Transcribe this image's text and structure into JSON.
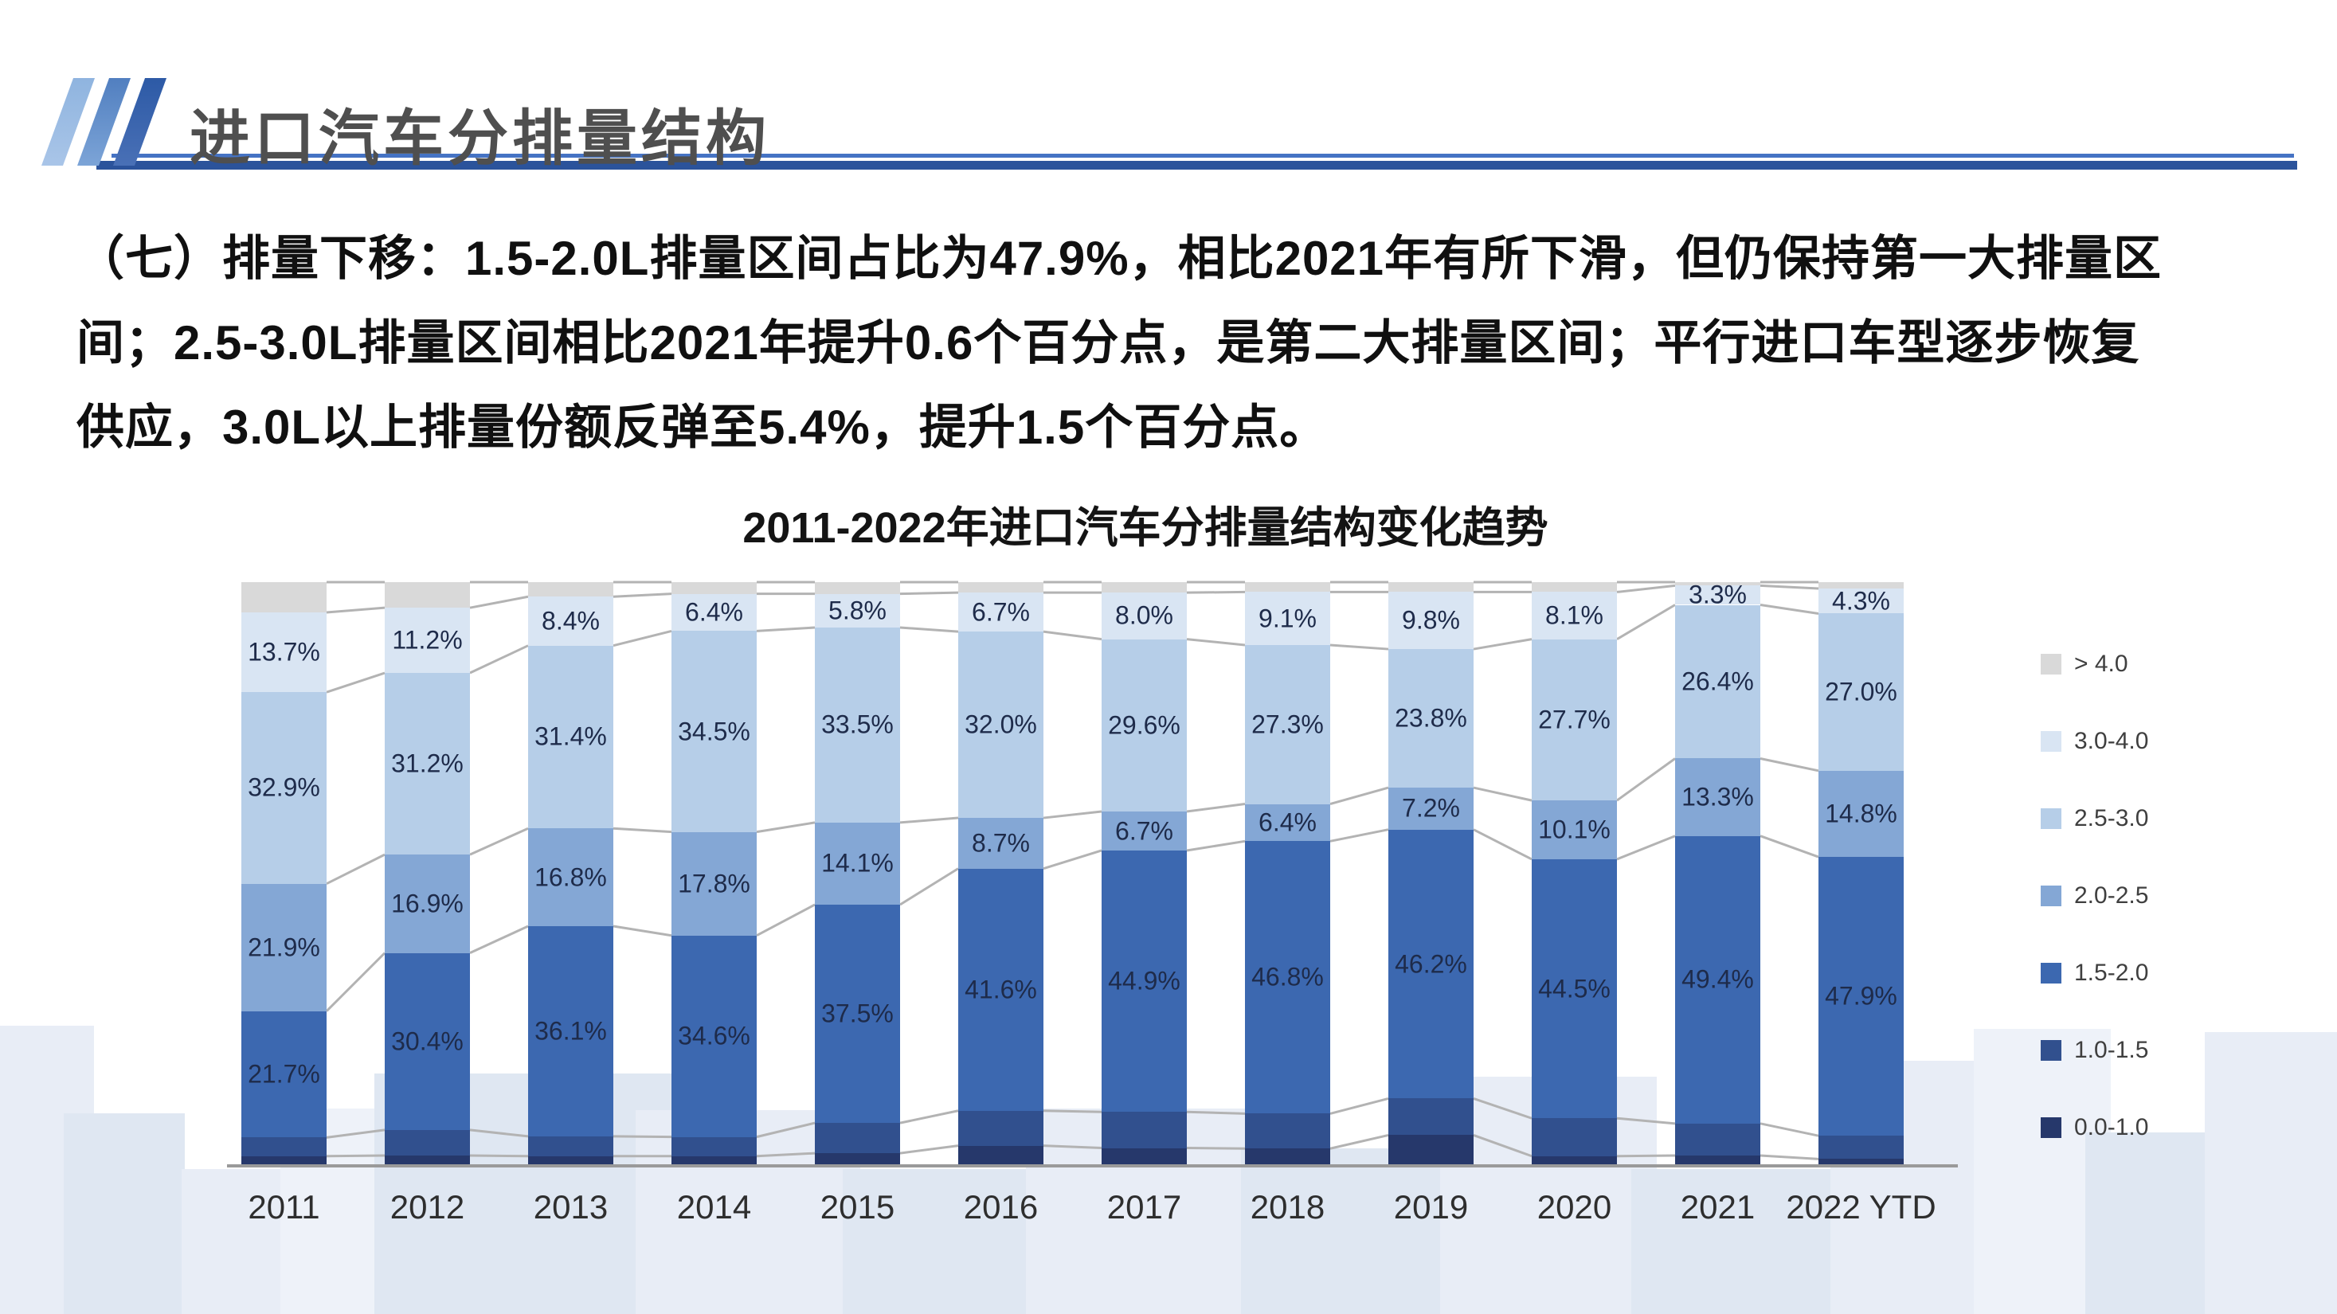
{
  "header": {
    "title": "进口汽车分排量结构"
  },
  "summary": {
    "lines": [
      "（七）排量下移：1.5-2.0L排量区间占比为47.9%，相比2021年有所下滑，但仍保持第一大排量区",
      "间；2.5-3.0L排量区间相比2021年提升0.6个百分点，是第二大排量区间；平行进口车型逐步恢复",
      "供应，3.0L以上排量份额反弹至5.4%，提升1.5个百分点。"
    ]
  },
  "chart_data": {
    "type": "bar",
    "subtype": "100-percent-stacked-column",
    "title": "2011-2022年进口汽车分排量结构变化趋势",
    "unit": "%",
    "legend_position": "right",
    "grid": false,
    "ylim": [
      0,
      100
    ],
    "categories": [
      "2011",
      "2012",
      "2013",
      "2014",
      "2015",
      "2016",
      "2017",
      "2018",
      "2019",
      "2020",
      "2021",
      "2022 YTD"
    ],
    "series": [
      {
        "name": "> 4.0",
        "color": "#d9d9d9",
        "labeled": false,
        "estimated": true,
        "values": [
          5.2,
          4.4,
          2.5,
          2.0,
          2.0,
          1.8,
          1.8,
          1.7,
          1.7,
          1.7,
          0.6,
          1.1
        ]
      },
      {
        "name": "3.0-4.0",
        "color": "#d9e5f3",
        "labeled": true,
        "values": [
          13.7,
          11.2,
          8.4,
          6.4,
          5.8,
          6.7,
          8.0,
          9.1,
          9.8,
          8.1,
          3.3,
          4.3
        ]
      },
      {
        "name": "2.5-3.0",
        "color": "#b6cee8",
        "labeled": true,
        "values": [
          32.9,
          31.2,
          31.4,
          34.5,
          33.5,
          32.0,
          29.6,
          27.3,
          23.8,
          27.7,
          26.4,
          27.0
        ]
      },
      {
        "name": "2.0-2.5",
        "color": "#84a7d5",
        "labeled": true,
        "values": [
          21.9,
          16.9,
          16.8,
          17.8,
          14.1,
          8.7,
          6.7,
          6.4,
          7.2,
          10.1,
          13.3,
          14.8
        ]
      },
      {
        "name": "1.5-2.0",
        "color": "#3c68b0",
        "labeled": true,
        "values": [
          21.7,
          30.4,
          36.1,
          34.6,
          37.5,
          41.6,
          44.9,
          46.8,
          46.2,
          44.5,
          49.4,
          47.9
        ]
      },
      {
        "name": "1.0-1.5",
        "color": "#31508e",
        "labeled": false,
        "estimated": true,
        "values": [
          3.2,
          4.4,
          3.4,
          3.3,
          5.2,
          6.0,
          6.2,
          6.0,
          6.3,
          6.5,
          5.5,
          4.0
        ]
      },
      {
        "name": "0.0-1.0",
        "color": "#26386b",
        "labeled": false,
        "estimated": true,
        "values": [
          1.4,
          1.5,
          1.4,
          1.4,
          1.9,
          3.2,
          2.8,
          2.7,
          5.0,
          1.4,
          1.5,
          0.9
        ]
      }
    ],
    "legend": [
      "> 4.0",
      "3.0-4.0",
      "2.5-3.0",
      "2.0-2.5",
      "1.5-2.0",
      "1.0-1.5",
      "0.0-1.0"
    ],
    "colors": {
      "axis_line": "#9a9a9a",
      "connector_line": "#b3b3b3",
      "segment_label": "#1e2b4a",
      "header_rule_thin": "#4573c4",
      "header_rule_thick": "#2b539b"
    }
  }
}
